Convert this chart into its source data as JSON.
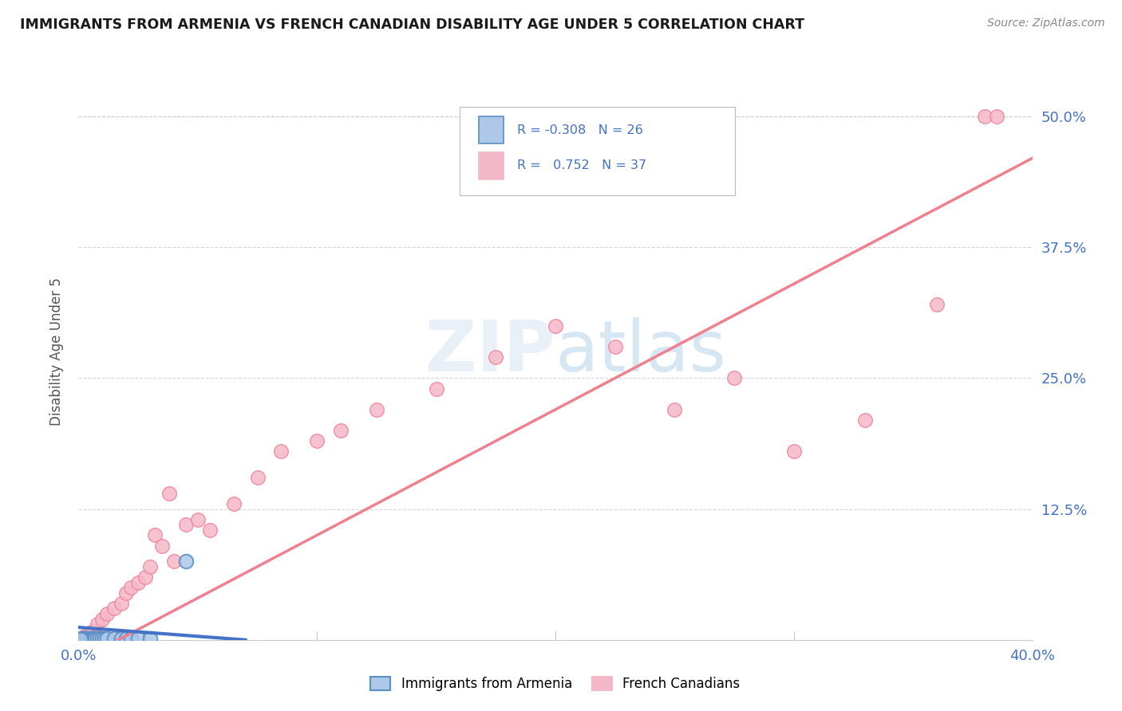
{
  "title": "IMMIGRANTS FROM ARMENIA VS FRENCH CANADIAN DISABILITY AGE UNDER 5 CORRELATION CHART",
  "source": "Source: ZipAtlas.com",
  "ylabel": "Disability Age Under 5",
  "xrange": [
    0.0,
    40.0
  ],
  "yrange": [
    0.0,
    55.0
  ],
  "legend_r_armenia": "-0.308",
  "legend_n_armenia": "26",
  "legend_r_french": "0.752",
  "legend_n_french": "37",
  "color_armenia_fill": "#adc8e8",
  "color_armenia_edge": "#5b8ec4",
  "color_french_fill": "#f5b8c8",
  "color_french_edge": "#f08098",
  "color_armenia_line": "#4472c4",
  "color_french_line": "#f08090",
  "color_axis_labels": "#4472c4",
  "color_grid": "#cccccc",
  "watermark_color": "#c8dff0",
  "armenia_x": [
    0.05,
    0.1,
    0.15,
    0.2,
    0.25,
    0.3,
    0.35,
    0.4,
    0.5,
    0.55,
    0.6,
    0.65,
    0.7,
    0.8,
    0.9,
    1.0,
    1.1,
    1.2,
    1.5,
    1.8,
    2.0,
    2.2,
    2.5,
    3.0,
    4.5,
    0.08
  ],
  "armenia_y": [
    0.05,
    0.08,
    0.1,
    0.1,
    0.1,
    0.1,
    0.1,
    0.15,
    0.1,
    0.1,
    0.1,
    0.1,
    0.1,
    0.1,
    0.1,
    0.1,
    0.1,
    0.1,
    0.1,
    0.1,
    0.1,
    0.1,
    0.1,
    0.1,
    7.5,
    0.05
  ],
  "french_x": [
    0.2,
    0.4,
    0.6,
    0.8,
    1.0,
    1.2,
    1.5,
    1.8,
    2.0,
    2.2,
    2.5,
    2.8,
    3.0,
    3.2,
    3.5,
    4.0,
    4.5,
    5.0,
    5.5,
    6.5,
    7.5,
    8.5,
    10.0,
    12.5,
    15.0,
    17.5,
    20.0,
    22.5,
    25.0,
    27.5,
    30.0,
    33.0,
    36.0,
    38.0,
    38.5,
    11.0,
    3.8
  ],
  "french_y": [
    0.3,
    0.5,
    0.8,
    1.5,
    2.0,
    2.5,
    3.0,
    3.5,
    4.5,
    5.0,
    5.5,
    6.0,
    7.0,
    10.0,
    9.0,
    7.5,
    11.0,
    11.5,
    10.5,
    13.0,
    15.5,
    18.0,
    19.0,
    22.0,
    24.0,
    27.0,
    30.0,
    28.0,
    22.0,
    25.0,
    18.0,
    21.0,
    32.0,
    50.0,
    50.0,
    20.0,
    14.0
  ]
}
